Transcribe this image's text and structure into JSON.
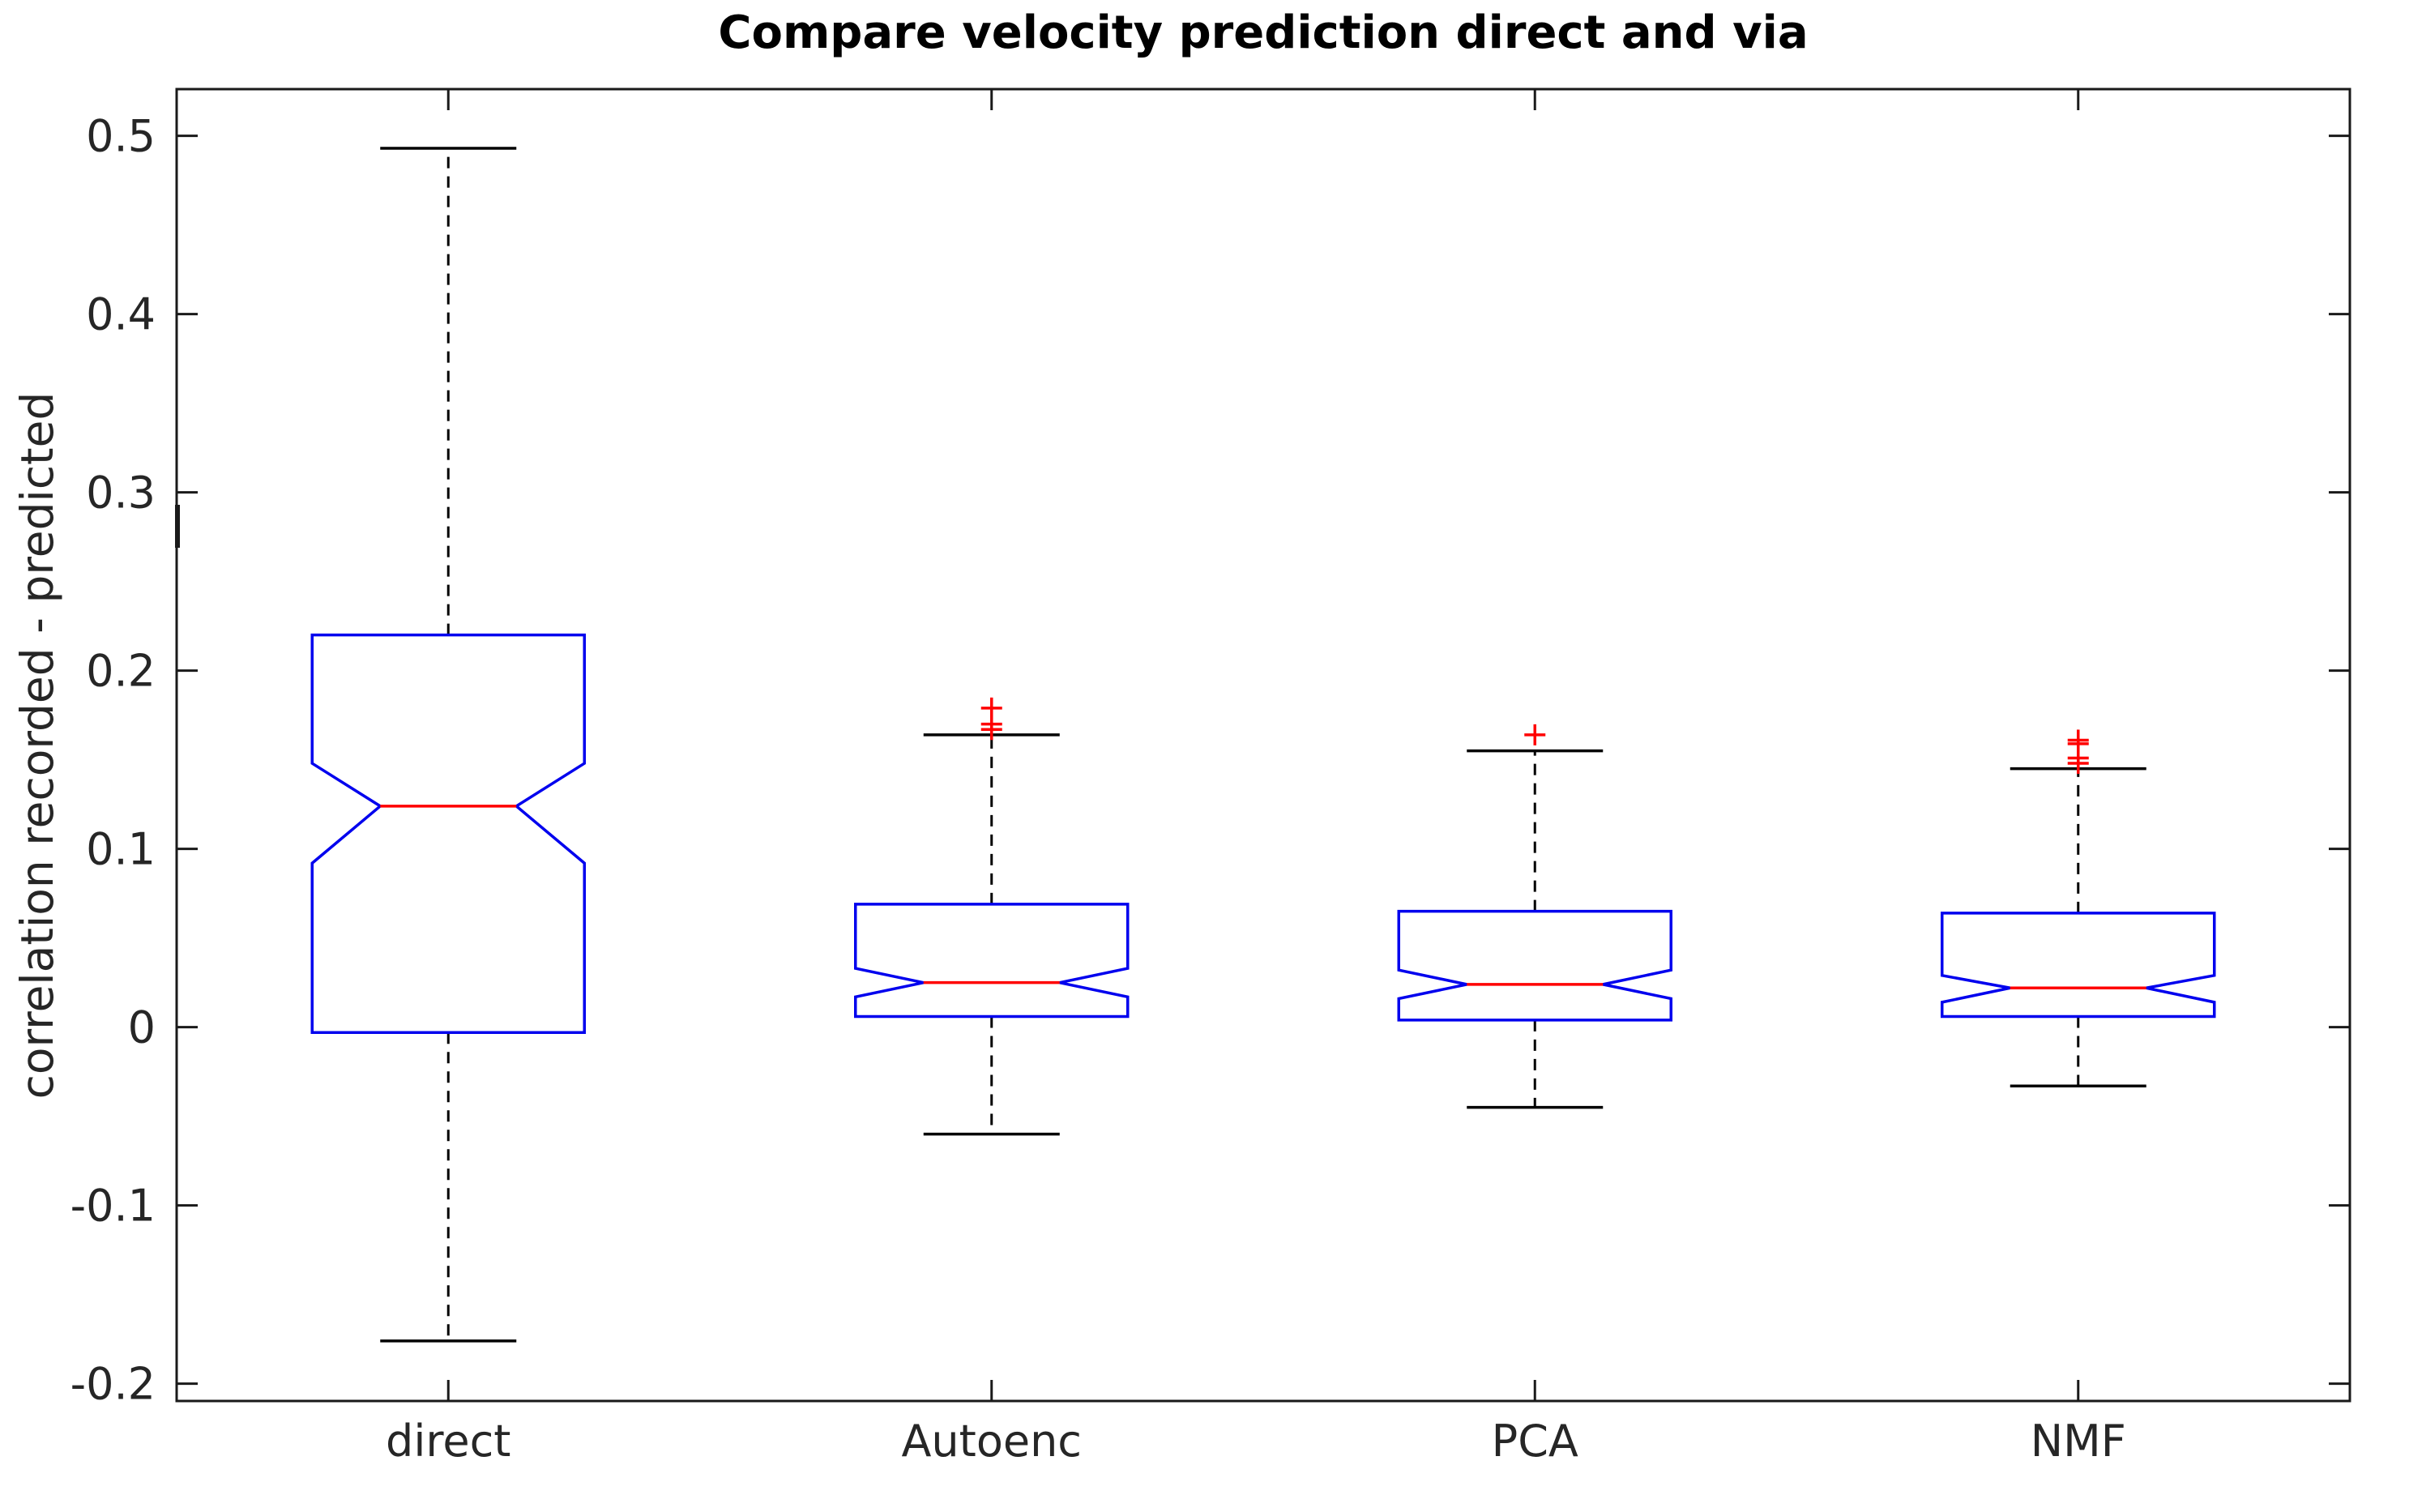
{
  "title": "Compare velocity prediction direct and via",
  "ylabel": "correlation recorded - predicted",
  "chart_data": {
    "type": "boxplot",
    "notched": true,
    "grid": false,
    "categories": [
      "direct",
      "Autoenc",
      "PCA",
      "NMF"
    ],
    "ylim": [
      -0.2097,
      0.5262
    ],
    "yticks": [
      0.5,
      0.4,
      0.3,
      0.2,
      0.1,
      0,
      -0.1,
      -0.2
    ],
    "ytick_labels": [
      "0.5",
      "0.4",
      "0.3",
      "0.2",
      "0.1",
      "0",
      "-0.1",
      "-0.2"
    ],
    "series": [
      {
        "name": "direct",
        "whisker_low": -0.176,
        "q1": -0.003,
        "median": 0.124,
        "q3": 0.22,
        "notch_low": 0.092,
        "notch_high": 0.148,
        "whisker_high": 0.493,
        "outliers": []
      },
      {
        "name": "Autoenc",
        "whisker_low": -0.06,
        "q1": 0.006,
        "median": 0.025,
        "q3": 0.069,
        "notch_low": 0.017,
        "notch_high": 0.033,
        "whisker_high": 0.164,
        "outliers": [
          0.179,
          0.17,
          0.167
        ]
      },
      {
        "name": "PCA",
        "whisker_low": -0.045,
        "q1": 0.004,
        "median": 0.024,
        "q3": 0.065,
        "notch_low": 0.016,
        "notch_high": 0.032,
        "whisker_high": 0.155,
        "outliers": [
          0.164
        ]
      },
      {
        "name": "NMF",
        "whisker_low": -0.033,
        "q1": 0.006,
        "median": 0.022,
        "q3": 0.064,
        "notch_low": 0.014,
        "notch_high": 0.029,
        "whisker_high": 0.145,
        "outliers": [
          0.161,
          0.159,
          0.151,
          0.148
        ]
      }
    ],
    "colors": {
      "box": "#0000ee",
      "median": "#ff0000",
      "whisker": "#000000",
      "cap": "#000000",
      "outlier": "#ff0000",
      "axis": "#1a1a1a",
      "tick_label": "#262626",
      "background": "#ffffff"
    }
  }
}
